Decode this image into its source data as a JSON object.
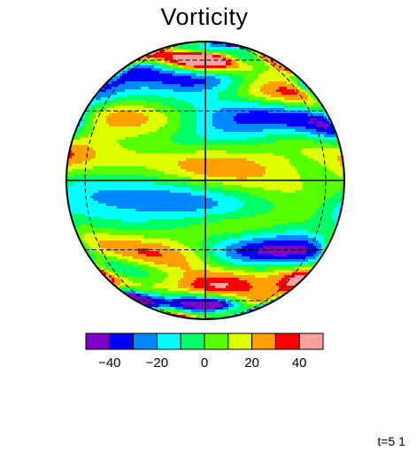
{
  "chart_data": {
    "type": "heatmap",
    "title": "Vorticity",
    "projection": "orthographic",
    "grid": "dashed latitude/longitude lines; solid equator and central meridian",
    "colorbar": {
      "orientation": "horizontal",
      "levels": [
        -50,
        -40,
        -30,
        -20,
        -10,
        0,
        10,
        20,
        30,
        40,
        50
      ],
      "ticks": [
        -40,
        -20,
        0,
        20,
        40
      ],
      "tick_labels": [
        "−40",
        "−20",
        "0",
        "20",
        "40"
      ],
      "colors": [
        "#7f00c8",
        "#0000ff",
        "#0088ff",
        "#00ffff",
        "#00ff66",
        "#55ff00",
        "#ddff00",
        "#ffa000",
        "#ff0000",
        "#ffa0a0"
      ]
    },
    "footer_text": "t=5 1",
    "description": "Zonally banded vorticity field: mostly near-zero green/cyan/yellow with alternating strong positive (red/white) and negative (blue/purple) streaks, especially at mid/high latitudes."
  }
}
